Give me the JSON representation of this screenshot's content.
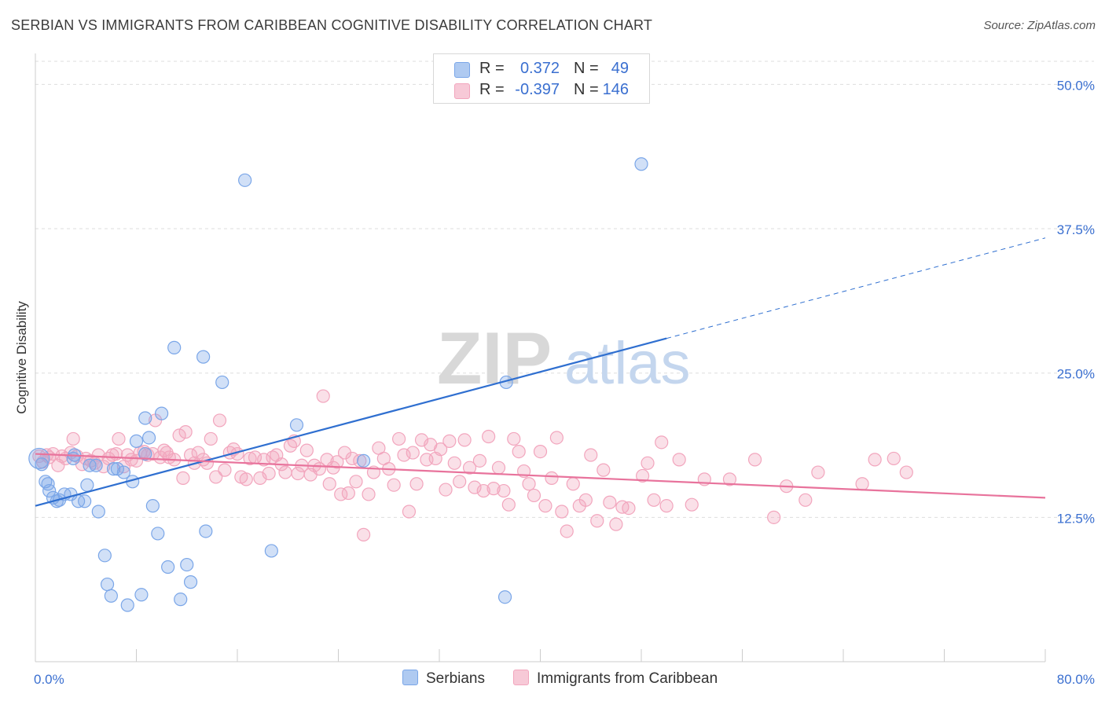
{
  "title": "SERBIAN VS IMMIGRANTS FROM CARIBBEAN COGNITIVE DISABILITY CORRELATION CHART",
  "source": "Source: ZipAtlas.com",
  "watermark": {
    "zip": "ZIP",
    "atlas": "atlas"
  },
  "legend": {
    "rows": [
      {
        "r_label": "R =",
        "r_value": "0.372",
        "n_label": "N =",
        "n_value": "49",
        "color": "#7aa6e8"
      },
      {
        "r_label": "R =",
        "r_value": "-0.397",
        "n_label": "N =",
        "n_value": "146",
        "color": "#f2a5bd"
      }
    ]
  },
  "bottom_legend": {
    "series1": "Serbians",
    "series2": "Immigrants from Caribbean"
  },
  "chart_data": {
    "type": "scatter",
    "title": "SERBIAN VS IMMIGRANTS FROM CARIBBEAN COGNITIVE DISABILITY CORRELATION CHART",
    "xlabel": "",
    "ylabel": "Cognitive Disability",
    "xlim": [
      0,
      80
    ],
    "ylim": [
      0,
      52
    ],
    "x_tick_labels": [
      "0.0%",
      "80.0%"
    ],
    "y_ticks": [
      12.5,
      25.0,
      37.5,
      50.0
    ],
    "y_tick_labels": [
      "12.5%",
      "25.0%",
      "37.5%",
      "50.0%"
    ],
    "grid": "horizontal dashed",
    "legend_placement": "top-center",
    "series": [
      {
        "name": "Serbians",
        "color": "#7aa6e8",
        "line_color": "#2f6fd0",
        "trend": {
          "x0": 0,
          "y0": 13.5,
          "x1": 50,
          "y1": 28.0,
          "dashed_to_x": 80,
          "dashed_to_y": 36.7
        },
        "points": [
          [
            0.3,
            17.6
          ],
          [
            0.5,
            17.1
          ],
          [
            0.8,
            15.6
          ],
          [
            1.0,
            15.4
          ],
          [
            1.1,
            14.8
          ],
          [
            1.4,
            14.2
          ],
          [
            1.7,
            13.9
          ],
          [
            1.9,
            14.0
          ],
          [
            2.3,
            14.5
          ],
          [
            2.8,
            14.5
          ],
          [
            3.0,
            17.6
          ],
          [
            3.1,
            17.9
          ],
          [
            3.4,
            13.9
          ],
          [
            3.9,
            13.9
          ],
          [
            4.1,
            15.3
          ],
          [
            4.3,
            17.0
          ],
          [
            4.8,
            17.0
          ],
          [
            5.0,
            13.0
          ],
          [
            5.5,
            9.2
          ],
          [
            5.7,
            6.7
          ],
          [
            6.0,
            5.7
          ],
          [
            6.2,
            16.7
          ],
          [
            6.5,
            16.7
          ],
          [
            7.0,
            16.4
          ],
          [
            7.3,
            4.9
          ],
          [
            7.7,
            15.6
          ],
          [
            8.0,
            19.1
          ],
          [
            8.4,
            5.8
          ],
          [
            8.7,
            21.1
          ],
          [
            8.7,
            18.0
          ],
          [
            9.0,
            19.4
          ],
          [
            9.3,
            13.5
          ],
          [
            9.7,
            11.1
          ],
          [
            10.0,
            21.5
          ],
          [
            10.5,
            8.2
          ],
          [
            11.0,
            27.2
          ],
          [
            11.5,
            5.4
          ],
          [
            12.0,
            8.4
          ],
          [
            12.3,
            6.9
          ],
          [
            13.3,
            26.4
          ],
          [
            13.5,
            11.3
          ],
          [
            14.8,
            24.2
          ],
          [
            16.6,
            41.7
          ],
          [
            18.7,
            9.6
          ],
          [
            20.7,
            20.5
          ],
          [
            26.0,
            17.4
          ],
          [
            37.3,
            24.2
          ],
          [
            37.2,
            5.6
          ],
          [
            48.0,
            43.1
          ]
        ]
      },
      {
        "name": "Immigrants from Caribbean",
        "color": "#f2a5bd",
        "line_color": "#e8739c",
        "trend": {
          "x0": 0,
          "y0": 18.0,
          "x1": 80,
          "y1": 14.2
        },
        "points": [
          [
            0.3,
            17.8
          ],
          [
            0.6,
            17.3
          ],
          [
            0.9,
            17.9
          ],
          [
            1.1,
            17.7
          ],
          [
            1.4,
            18.0
          ],
          [
            1.8,
            17.0
          ],
          [
            2.1,
            17.8
          ],
          [
            2.4,
            17.6
          ],
          [
            2.8,
            18.1
          ],
          [
            3.0,
            19.3
          ],
          [
            3.3,
            17.8
          ],
          [
            3.7,
            17.1
          ],
          [
            4.0,
            17.6
          ],
          [
            4.4,
            17.4
          ],
          [
            4.7,
            17.2
          ],
          [
            5.0,
            17.9
          ],
          [
            5.4,
            16.9
          ],
          [
            5.8,
            17.6
          ],
          [
            6.1,
            17.9
          ],
          [
            6.4,
            18.0
          ],
          [
            6.6,
            19.3
          ],
          [
            7.0,
            16.9
          ],
          [
            7.3,
            17.9
          ],
          [
            7.6,
            17.5
          ],
          [
            8.0,
            17.4
          ],
          [
            8.3,
            18.1
          ],
          [
            8.6,
            18.2
          ],
          [
            8.9,
            17.9
          ],
          [
            9.3,
            18.0
          ],
          [
            9.5,
            20.9
          ],
          [
            9.9,
            17.7
          ],
          [
            10.2,
            18.3
          ],
          [
            10.4,
            18.1
          ],
          [
            10.6,
            17.7
          ],
          [
            11.0,
            17.5
          ],
          [
            11.4,
            19.6
          ],
          [
            11.7,
            15.9
          ],
          [
            11.9,
            19.9
          ],
          [
            12.3,
            17.9
          ],
          [
            12.6,
            17.2
          ],
          [
            12.9,
            18.1
          ],
          [
            13.3,
            17.5
          ],
          [
            13.6,
            17.2
          ],
          [
            13.9,
            19.3
          ],
          [
            14.3,
            16.0
          ],
          [
            14.6,
            20.9
          ],
          [
            15.0,
            16.6
          ],
          [
            15.4,
            18.1
          ],
          [
            15.7,
            18.4
          ],
          [
            16.0,
            18.0
          ],
          [
            16.3,
            16.0
          ],
          [
            16.7,
            15.8
          ],
          [
            17.0,
            17.6
          ],
          [
            17.4,
            17.7
          ],
          [
            17.8,
            15.9
          ],
          [
            18.1,
            17.5
          ],
          [
            18.5,
            16.3
          ],
          [
            18.8,
            17.7
          ],
          [
            19.1,
            17.9
          ],
          [
            19.5,
            17.1
          ],
          [
            19.8,
            16.4
          ],
          [
            20.2,
            18.7
          ],
          [
            20.5,
            19.1
          ],
          [
            20.8,
            16.3
          ],
          [
            21.1,
            17.0
          ],
          [
            21.5,
            18.3
          ],
          [
            21.8,
            16.2
          ],
          [
            22.1,
            17.0
          ],
          [
            22.5,
            16.7
          ],
          [
            22.8,
            23.0
          ],
          [
            23.1,
            17.5
          ],
          [
            23.3,
            15.4
          ],
          [
            23.6,
            16.8
          ],
          [
            23.9,
            17.3
          ],
          [
            24.2,
            14.5
          ],
          [
            24.5,
            18.1
          ],
          [
            24.8,
            14.6
          ],
          [
            25.1,
            17.6
          ],
          [
            25.4,
            15.6
          ],
          [
            25.7,
            17.4
          ],
          [
            26.0,
            11.0
          ],
          [
            26.4,
            14.5
          ],
          [
            26.8,
            16.4
          ],
          [
            27.2,
            18.5
          ],
          [
            27.6,
            17.6
          ],
          [
            28.0,
            16.7
          ],
          [
            28.4,
            15.3
          ],
          [
            28.8,
            19.3
          ],
          [
            29.2,
            17.9
          ],
          [
            29.6,
            13.0
          ],
          [
            29.9,
            18.1
          ],
          [
            30.2,
            15.4
          ],
          [
            30.6,
            19.2
          ],
          [
            31.0,
            17.5
          ],
          [
            31.3,
            18.8
          ],
          [
            31.7,
            17.6
          ],
          [
            32.1,
            18.4
          ],
          [
            32.5,
            14.9
          ],
          [
            32.8,
            19.1
          ],
          [
            33.2,
            17.2
          ],
          [
            33.6,
            15.6
          ],
          [
            34.0,
            19.2
          ],
          [
            34.4,
            16.8
          ],
          [
            34.8,
            15.1
          ],
          [
            35.2,
            17.4
          ],
          [
            35.5,
            14.8
          ],
          [
            35.9,
            19.5
          ],
          [
            36.3,
            15.0
          ],
          [
            36.7,
            16.8
          ],
          [
            37.1,
            14.8
          ],
          [
            37.5,
            13.6
          ],
          [
            37.9,
            19.3
          ],
          [
            38.3,
            18.2
          ],
          [
            38.7,
            16.5
          ],
          [
            39.1,
            15.4
          ],
          [
            39.5,
            14.4
          ],
          [
            40.0,
            18.2
          ],
          [
            40.4,
            13.5
          ],
          [
            40.9,
            15.9
          ],
          [
            41.3,
            19.4
          ],
          [
            41.7,
            13.0
          ],
          [
            42.1,
            11.3
          ],
          [
            42.6,
            15.4
          ],
          [
            43.1,
            13.5
          ],
          [
            43.6,
            14.0
          ],
          [
            44.0,
            17.9
          ],
          [
            44.5,
            12.2
          ],
          [
            45.0,
            16.6
          ],
          [
            45.5,
            13.8
          ],
          [
            46.0,
            11.9
          ],
          [
            46.5,
            13.4
          ],
          [
            47.0,
            13.3
          ],
          [
            48.1,
            16.1
          ],
          [
            48.5,
            17.2
          ],
          [
            49.0,
            14.0
          ],
          [
            49.6,
            19.0
          ],
          [
            50.0,
            13.5
          ],
          [
            51.0,
            17.5
          ],
          [
            52.0,
            13.6
          ],
          [
            53.0,
            15.8
          ],
          [
            55.0,
            15.8
          ],
          [
            57.0,
            17.5
          ],
          [
            58.5,
            12.5
          ],
          [
            59.5,
            15.2
          ],
          [
            61.0,
            14.0
          ],
          [
            62.0,
            16.4
          ],
          [
            65.5,
            15.4
          ],
          [
            66.5,
            17.5
          ],
          [
            68.0,
            17.6
          ],
          [
            69.0,
            16.4
          ]
        ]
      }
    ]
  }
}
